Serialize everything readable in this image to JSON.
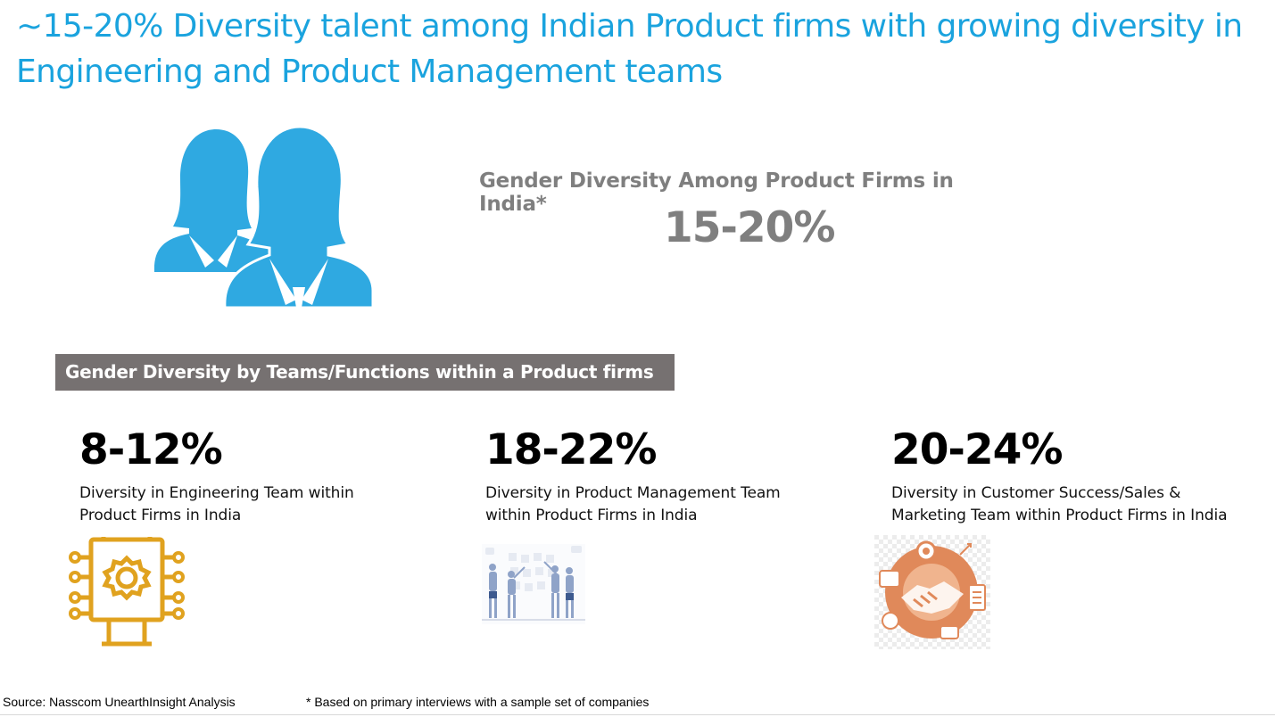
{
  "slide": {
    "title": "~15-20% Diversity talent among Indian Product firms with growing diversity in Engineering and Product Management teams"
  },
  "overall": {
    "label": "Gender Diversity Among Product Firms in India*",
    "value": "15-20%",
    "icon": "women-group-icon"
  },
  "section": {
    "heading": "Gender Diversity by Teams/Functions within a Product firms"
  },
  "teams": [
    {
      "value": "8-12%",
      "description": "Diversity in Engineering Team within Product Firms in India",
      "icon": "gear-chip-icon"
    },
    {
      "value": "18-22%",
      "description": "Diversity in Product Management Team within Product Firms in India",
      "icon": "team-planning-icon"
    },
    {
      "value": "20-24%",
      "description": "Diversity in Customer Success/Sales & Marketing Team within Product Firms in India",
      "icon": "handshake-icon"
    }
  ],
  "colors": {
    "title": "#1aa3de",
    "people_icon": "#2fa9e1",
    "banner": "#767171",
    "engineering_icon": "#e0a21f",
    "handshake_icon": "#e0895a"
  },
  "footer": {
    "source": "Source: Nasscom UnearthInsight Analysis",
    "note": "* Based on primary interviews with a sample set of companies"
  }
}
